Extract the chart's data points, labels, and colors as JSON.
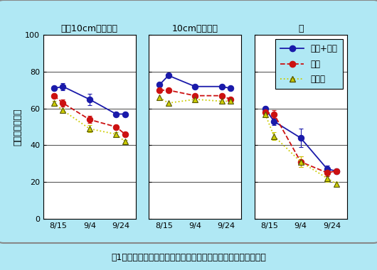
{
  "background_color": "#b0e8f4",
  "plot_bg_color": "#ffffff",
  "x_labels": [
    "8/15",
    "9/4",
    "9/24"
  ],
  "ylim": [
    0,
    100
  ],
  "yticks": [
    0,
    20,
    40,
    60,
    80,
    100
  ],
  "subplot_titles": [
    "地際10cm以上全体",
    "10cm以上茎葉",
    "穂"
  ],
  "ylabel": "水分含量（％）",
  "caption": "囱1　登熟期における飼料イネの登熟期の水分含量の推移の一例",
  "legend_labels": [
    "堆肥+多肝",
    "標肝",
    "無窒素"
  ],
  "x_data": [
    0,
    0.25,
    1.0,
    1.75,
    2.0
  ],
  "x_ticks": [
    0.125,
    1.0,
    1.875
  ],
  "x_lim": [
    -0.3,
    2.3
  ],
  "series": {
    "panel1": {
      "taihi": {
        "y": [
          71,
          72,
          65,
          57,
          57
        ]
      },
      "hyohi": {
        "y": [
          67,
          63,
          54,
          50,
          46
        ]
      },
      "muchi": {
        "y": [
          63,
          59,
          49,
          46,
          42
        ]
      }
    },
    "panel2": {
      "taihi": {
        "y": [
          73,
          78,
          72,
          72,
          71
        ]
      },
      "hyohi": {
        "y": [
          70,
          70,
          67,
          67,
          65
        ]
      },
      "muchi": {
        "y": [
          66,
          63,
          65,
          64,
          64
        ]
      }
    },
    "panel3": {
      "taihi": {
        "y": [
          60,
          53,
          44,
          27,
          26
        ]
      },
      "hyohi": {
        "y": [
          58,
          57,
          31,
          25,
          26
        ]
      },
      "muchi": {
        "y": [
          57,
          45,
          31,
          22,
          19
        ]
      }
    }
  },
  "errors": {
    "panel1": {
      "taihi": [
        1,
        2,
        3,
        1,
        1
      ],
      "hyohi": [
        1,
        2,
        2,
        1,
        1
      ],
      "muchi": [
        1,
        1,
        2,
        1,
        1
      ]
    },
    "panel3": {
      "taihi": [
        1,
        2,
        5,
        2,
        1
      ],
      "hyohi": [
        1,
        2,
        3,
        2,
        1
      ],
      "muchi": [
        1,
        2,
        3,
        2,
        1
      ]
    }
  },
  "colors": {
    "taihi": "#1a1aaa",
    "hyohi": "#cc1111",
    "muchi": "#cccc00"
  },
  "line_styles": {
    "taihi": "-",
    "hyohi": "--",
    "muchi": ":"
  },
  "marker_styles": {
    "taihi": "o",
    "hyohi": "o",
    "muchi": "^"
  },
  "marker_edge_colors": {
    "taihi": "#1a1aaa",
    "hyohi": "#cc1111",
    "muchi": "#555500"
  }
}
